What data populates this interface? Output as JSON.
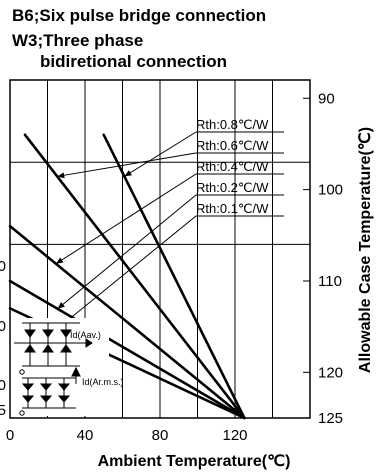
{
  "chart_data": {
    "type": "line",
    "title_lines": [
      "B6;Six pulse bridge connection",
      "W3;Three phase",
      "bidiretional connection"
    ],
    "xlabel": "Ambient Temperature(℃)",
    "y2label": "Allowable Case Temperature(℃)",
    "x_ticks": [
      "0",
      "40",
      "80",
      "120"
    ],
    "y2_ticks": [
      "90",
      "100",
      "110",
      "120",
      "125"
    ],
    "left_tick_labels": [
      "0",
      "0",
      "0",
      "5"
    ],
    "xlim": [
      0,
      160
    ],
    "y2lim": [
      125,
      88
    ],
    "grid": true,
    "series": [
      {
        "name": "Rth:0.8℃/W",
        "x": [
          50,
          125
        ],
        "y": [
          94,
          125
        ]
      },
      {
        "name": "Rth:0.6℃/W",
        "x": [
          8,
          125
        ],
        "y": [
          94,
          125
        ]
      },
      {
        "name": "Rth:0.4℃/W",
        "x": [
          0,
          125
        ],
        "y": [
          104,
          125
        ]
      },
      {
        "name": "Rth:0.2℃/W",
        "x": [
          0,
          125
        ],
        "y": [
          110,
          125
        ]
      },
      {
        "name": "Rth:0.1℃/W",
        "x": [
          0,
          125
        ],
        "y": [
          113,
          125
        ]
      }
    ],
    "circuit_labels": {
      "avg": "Id(Aav.)",
      "rms": "Id(Ar.m.s.)"
    }
  }
}
